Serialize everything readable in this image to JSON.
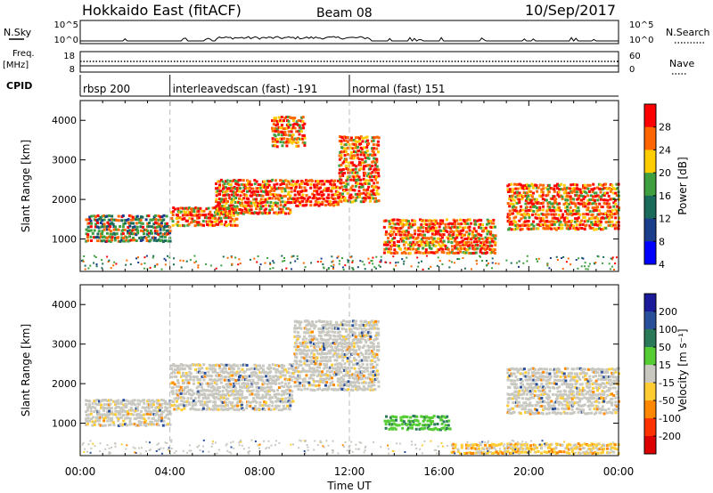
{
  "header": {
    "station": "Hokkaido East (fitACF)",
    "beam": "Beam 08",
    "date": "10/Sep/2017"
  },
  "top_panels": {
    "nsky_label": "N.Sky",
    "nsky_ticks": [
      "10^5",
      "10^0"
    ],
    "nsearch_label": "N.Search",
    "nsearch_ticks": [
      "10^5",
      "10^0"
    ],
    "freq_label_line1": "Freq.",
    "freq_label_line2": "[MHz]",
    "freq_ticks": [
      "18",
      "8"
    ],
    "nave_label": "Nave",
    "nave_ticks": [
      "60",
      "0"
    ],
    "cpid_label": "CPID"
  },
  "cpid_segments": [
    {
      "text": "rbsp 200",
      "start_hour": 0
    },
    {
      "text": "interleavedscan (fast) -191",
      "start_hour": 4
    },
    {
      "text": "normal (fast) 151",
      "start_hour": 12
    }
  ],
  "chart_data": [
    {
      "type": "heatmap",
      "quantity": "Power",
      "ylabel": "Slant Range [km]",
      "xlabel": "Time UT",
      "x_ticks": [
        "00:00",
        "04:00",
        "08:00",
        "12:00",
        "16:00",
        "20:00",
        "00:00"
      ],
      "xlim_hours": [
        0,
        24
      ],
      "ylim_km": [
        180,
        4500
      ],
      "y_ticks": [
        1000,
        2000,
        3000,
        4000
      ],
      "colorbar": {
        "label": "Power [dB]",
        "ticks": [
          "28",
          "24",
          "20",
          "16",
          "12",
          "8",
          "4"
        ],
        "colors": [
          "#ff0000",
          "#ff6600",
          "#ffcc00",
          "#40a040",
          "#1a6b5a",
          "#1a3d8c",
          "#0000ff"
        ]
      },
      "echo_regions": [
        {
          "t0": 0.2,
          "t1": 4.0,
          "r0": 900,
          "r1": 1600,
          "level": "mixed"
        },
        {
          "t0": 4.0,
          "t1": 7.0,
          "r0": 1300,
          "r1": 1800,
          "level": "strong"
        },
        {
          "t0": 6.0,
          "t1": 9.5,
          "r0": 1600,
          "r1": 2500,
          "level": "strong"
        },
        {
          "t0": 9.5,
          "t1": 11.5,
          "r0": 1800,
          "r1": 2500,
          "level": "very_strong"
        },
        {
          "t0": 8.5,
          "t1": 10.0,
          "r0": 3300,
          "r1": 4100,
          "level": "strong"
        },
        {
          "t0": 11.5,
          "t1": 13.3,
          "r0": 1900,
          "r1": 3600,
          "level": "strong"
        },
        {
          "t0": 13.5,
          "t1": 18.5,
          "r0": 600,
          "r1": 1500,
          "level": "strong"
        },
        {
          "t0": 19.0,
          "t1": 24.0,
          "r0": 1200,
          "r1": 2400,
          "level": "strong"
        }
      ]
    },
    {
      "type": "heatmap",
      "quantity": "Velocity",
      "ylabel": "Slant Range [km]",
      "xlabel": "Time UT",
      "x_ticks": [
        "00:00",
        "04:00",
        "08:00",
        "12:00",
        "16:00",
        "20:00",
        "00:00"
      ],
      "xlim_hours": [
        0,
        24
      ],
      "ylim_km": [
        180,
        4500
      ],
      "y_ticks": [
        1000,
        2000,
        3000,
        4000
      ],
      "colorbar": {
        "label": "Velocity [m s⁻¹]",
        "ticks": [
          "200",
          "100",
          "50",
          "15",
          "-15",
          "-50",
          "-100",
          "-200"
        ],
        "colors": [
          "#1a1a9a",
          "#2a4f9a",
          "#2a7a5a",
          "#55cc33",
          "#c8c8c0",
          "#ffcc33",
          "#ff8800",
          "#ff3300",
          "#dd0000"
        ]
      },
      "echo_regions": [
        {
          "t0": 0.2,
          "t1": 4.0,
          "r0": 900,
          "r1": 1600,
          "level": "near_zero"
        },
        {
          "t0": 4.0,
          "t1": 9.5,
          "r0": 1300,
          "r1": 2500,
          "level": "near_zero"
        },
        {
          "t0": 9.5,
          "t1": 13.3,
          "r0": 1800,
          "r1": 3600,
          "level": "near_zero"
        },
        {
          "t0": 13.5,
          "t1": 16.5,
          "r0": 800,
          "r1": 1200,
          "level": "toward"
        },
        {
          "t0": 16.5,
          "t1": 24.0,
          "r0": 200,
          "r1": 500,
          "level": "away"
        },
        {
          "t0": 19.0,
          "t1": 24.0,
          "r0": 1200,
          "r1": 2400,
          "level": "near_zero"
        }
      ]
    }
  ]
}
